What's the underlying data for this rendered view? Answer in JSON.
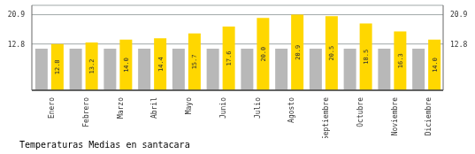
{
  "chart_data": {
    "type": "bar",
    "title": "Temperaturas Medias en santacara",
    "categories": [
      "Enero",
      "Febrero",
      "Marzo",
      "Abril",
      "Mayo",
      "Junio",
      "Julio",
      "Agosto",
      "Septiembre",
      "Octubre",
      "Noviembre",
      "Diciembre"
    ],
    "series": [
      {
        "color": "#B8B8B8",
        "values": [
          11.5,
          11.5,
          11.5,
          11.5,
          11.5,
          11.5,
          11.5,
          11.5,
          11.5,
          11.5,
          11.5,
          11.5
        ]
      },
      {
        "color": "#FFD700",
        "values": [
          12.8,
          13.2,
          14.0,
          14.4,
          15.7,
          17.6,
          20.0,
          20.9,
          20.5,
          18.5,
          16.3,
          14.0
        ],
        "value_labels": [
          "12.8",
          "13.2",
          "14.0",
          "14.4",
          "15.7",
          "17.6",
          "20.0",
          "20.9",
          "20.5",
          "18.5",
          "16.3",
          "14.0"
        ],
        "data_labels": true
      }
    ],
    "ylim": [
      0,
      23.5
    ],
    "yticks": [
      12.8,
      20.9
    ],
    "y2lim": [
      0,
      23.5
    ],
    "y2ticks": [
      12.8,
      20.9
    ],
    "grid": true
  }
}
